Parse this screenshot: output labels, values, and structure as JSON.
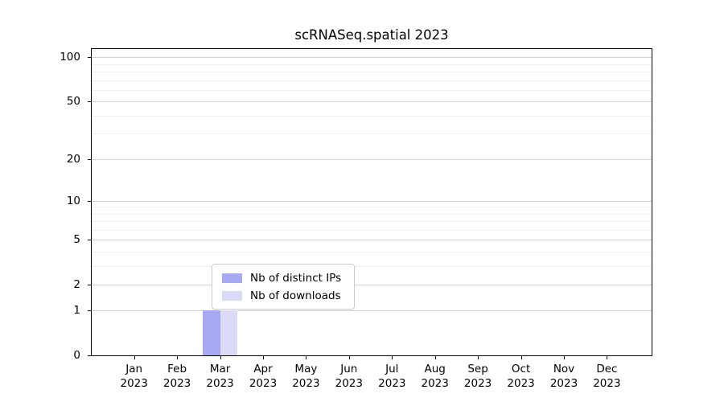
{
  "chart_data": {
    "type": "bar",
    "title": "scRNASeq.spatial 2023",
    "categories": [
      {
        "month": "Jan",
        "year": "2023"
      },
      {
        "month": "Feb",
        "year": "2023"
      },
      {
        "month": "Mar",
        "year": "2023"
      },
      {
        "month": "Apr",
        "year": "2023"
      },
      {
        "month": "May",
        "year": "2023"
      },
      {
        "month": "Jun",
        "year": "2023"
      },
      {
        "month": "Jul",
        "year": "2023"
      },
      {
        "month": "Aug",
        "year": "2023"
      },
      {
        "month": "Sep",
        "year": "2023"
      },
      {
        "month": "Oct",
        "year": "2023"
      },
      {
        "month": "Nov",
        "year": "2023"
      },
      {
        "month": "Dec",
        "year": "2023"
      }
    ],
    "series": [
      {
        "name": "Nb of distinct IPs",
        "color": "#a8a8f3",
        "values": [
          0,
          0,
          1,
          0,
          0,
          0,
          0,
          0,
          0,
          0,
          0,
          0
        ]
      },
      {
        "name": "Nb of downloads",
        "color": "#dbdbf8",
        "values": [
          0,
          0,
          1,
          0,
          0,
          0,
          0,
          0,
          0,
          0,
          0,
          0
        ]
      }
    ],
    "y_axis": {
      "scale": "log1p",
      "ticks": [
        0,
        1,
        2,
        5,
        10,
        20,
        50,
        100
      ],
      "minor_ticks": [
        3,
        4,
        6,
        7,
        8,
        9,
        30,
        40,
        60,
        70,
        80,
        90
      ],
      "ylim": [
        0,
        114
      ]
    },
    "grid": {
      "horizontal": true,
      "major_color": "#d3d3d3",
      "minor_color": "#efefef"
    },
    "legend": {
      "position": "lower center"
    }
  }
}
